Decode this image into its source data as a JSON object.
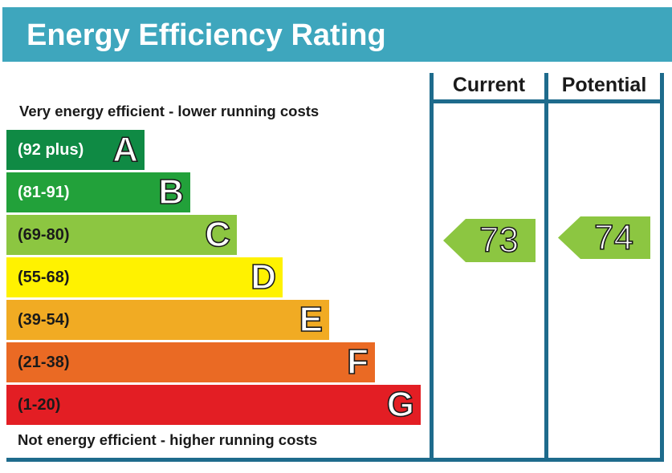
{
  "header": {
    "title": "Energy Efficiency Rating"
  },
  "labels": {
    "top": "Very energy efficient - lower running costs",
    "bottom": "Not energy efficient - higher running costs"
  },
  "columns": {
    "current": "Current",
    "potential": "Potential"
  },
  "colors": {
    "header": "#3ea6bd",
    "frame": "#1e6b8c",
    "A": "#0f8a44",
    "B": "#22a13a",
    "C": "#8cc641",
    "D": "#fff200",
    "E": "#f1ab23",
    "F": "#ea6a24",
    "G": "#e31e24"
  },
  "chart_data": {
    "type": "bar",
    "title": "Energy Efficiency Rating",
    "categories": [
      "A",
      "B",
      "C",
      "D",
      "E",
      "F",
      "G"
    ],
    "bands": [
      {
        "letter": "A",
        "range": "(92 plus)",
        "min": 92,
        "max": null
      },
      {
        "letter": "B",
        "range": "(81-91)",
        "min": 81,
        "max": 91
      },
      {
        "letter": "C",
        "range": "(69-80)",
        "min": 69,
        "max": 80
      },
      {
        "letter": "D",
        "range": "(55-68)",
        "min": 55,
        "max": 68
      },
      {
        "letter": "E",
        "range": "(39-54)",
        "min": 39,
        "max": 54
      },
      {
        "letter": "F",
        "range": "(21-38)",
        "min": 21,
        "max": 38
      },
      {
        "letter": "G",
        "range": "(1-20)",
        "min": 1,
        "max": 20
      }
    ],
    "series": [
      {
        "name": "Current",
        "value": "73",
        "band": "C"
      },
      {
        "name": "Potential",
        "value": "74",
        "band": "C"
      }
    ]
  }
}
